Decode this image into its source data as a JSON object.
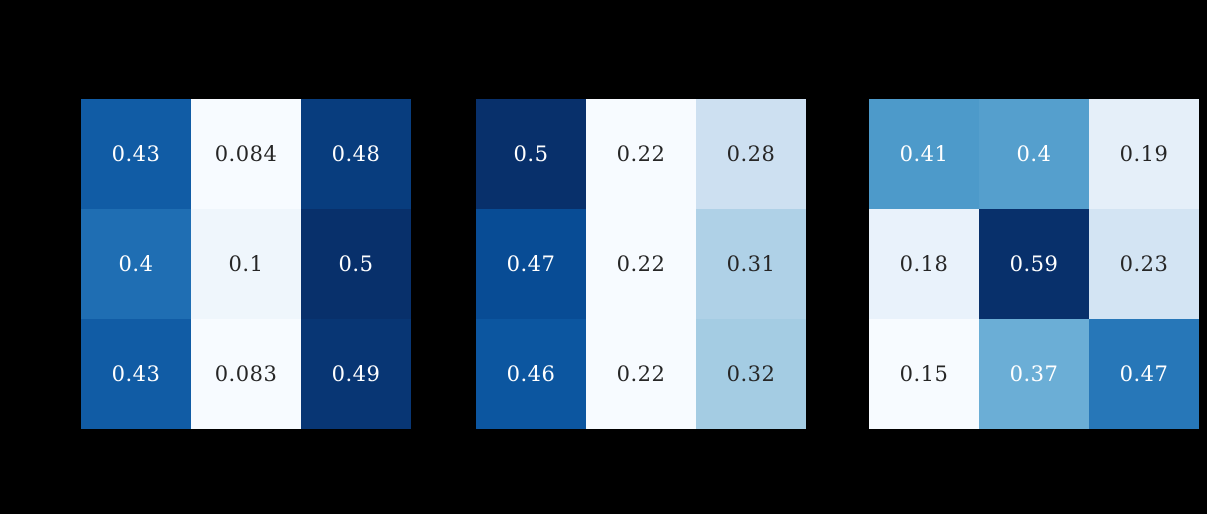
{
  "figure": {
    "background": "#000000",
    "colormap": "Blues",
    "colormap_low": "#f7fbff",
    "colormap_high": "#08306b",
    "annotation_text_dark": "#262626",
    "annotation_text_light": "#ffffff"
  },
  "chart_data": [
    {
      "type": "heatmap",
      "grid": {
        "rows": 3,
        "cols": 3
      },
      "colormap": "Blues",
      "vmin": 0.083,
      "vmax": 0.5,
      "values": [
        [
          0.43,
          0.084,
          0.48
        ],
        [
          0.4,
          0.1,
          0.5
        ],
        [
          0.43,
          0.083,
          0.49
        ]
      ],
      "cells": [
        {
          "label": "0.43",
          "value": 0.43,
          "color": "#115ca5",
          "text_color": "#ffffff"
        },
        {
          "label": "0.084",
          "value": 0.084,
          "color": "#f7fbff",
          "text_color": "#262626"
        },
        {
          "label": "0.48",
          "value": 0.48,
          "color": "#083d7e",
          "text_color": "#ffffff"
        },
        {
          "label": "0.4",
          "value": 0.4,
          "color": "#1f6eb3",
          "text_color": "#ffffff"
        },
        {
          "label": "0.1",
          "value": 0.1,
          "color": "#eff6fc",
          "text_color": "#262626"
        },
        {
          "label": "0.5",
          "value": 0.5,
          "color": "#08306b",
          "text_color": "#ffffff"
        },
        {
          "label": "0.43",
          "value": 0.43,
          "color": "#115ca5",
          "text_color": "#ffffff"
        },
        {
          "label": "0.083",
          "value": 0.083,
          "color": "#f7fbff",
          "text_color": "#262626"
        },
        {
          "label": "0.49",
          "value": 0.49,
          "color": "#083674",
          "text_color": "#ffffff"
        }
      ]
    },
    {
      "type": "heatmap",
      "grid": {
        "rows": 3,
        "cols": 3
      },
      "colormap": "Blues",
      "vmin": 0.22,
      "vmax": 0.5,
      "values": [
        [
          0.5,
          0.22,
          0.28
        ],
        [
          0.47,
          0.22,
          0.31
        ],
        [
          0.46,
          0.22,
          0.32
        ]
      ],
      "cells": [
        {
          "label": "0.5",
          "value": 0.5,
          "color": "#08306b",
          "text_color": "#ffffff"
        },
        {
          "label": "0.22",
          "value": 0.22,
          "color": "#f7fbff",
          "text_color": "#262626"
        },
        {
          "label": "0.28",
          "value": 0.28,
          "color": "#cde0f1",
          "text_color": "#262626"
        },
        {
          "label": "0.47",
          "value": 0.47,
          "color": "#084c95",
          "text_color": "#ffffff"
        },
        {
          "label": "0.22",
          "value": 0.22,
          "color": "#f7fbff",
          "text_color": "#262626"
        },
        {
          "label": "0.31",
          "value": 0.31,
          "color": "#afd1e7",
          "text_color": "#262626"
        },
        {
          "label": "0.46",
          "value": 0.46,
          "color": "#0c56a0",
          "text_color": "#ffffff"
        },
        {
          "label": "0.22",
          "value": 0.22,
          "color": "#f7fbff",
          "text_color": "#262626"
        },
        {
          "label": "0.32",
          "value": 0.32,
          "color": "#a4cce3",
          "text_color": "#262626"
        }
      ]
    },
    {
      "type": "heatmap",
      "grid": {
        "rows": 3,
        "cols": 3
      },
      "colormap": "Blues",
      "vmin": 0.15,
      "vmax": 0.59,
      "values": [
        [
          0.41,
          0.4,
          0.19
        ],
        [
          0.18,
          0.59,
          0.23
        ],
        [
          0.15,
          0.37,
          0.47
        ]
      ],
      "cells": [
        {
          "label": "0.41",
          "value": 0.41,
          "color": "#4d9aca",
          "text_color": "#ffffff"
        },
        {
          "label": "0.4",
          "value": 0.4,
          "color": "#559fcd",
          "text_color": "#ffffff"
        },
        {
          "label": "0.19",
          "value": 0.19,
          "color": "#e5eff9",
          "text_color": "#262626"
        },
        {
          "label": "0.18",
          "value": 0.18,
          "color": "#e9f2fb",
          "text_color": "#262626"
        },
        {
          "label": "0.59",
          "value": 0.59,
          "color": "#08306b",
          "text_color": "#ffffff"
        },
        {
          "label": "0.23",
          "value": 0.23,
          "color": "#d3e4f3",
          "text_color": "#262626"
        },
        {
          "label": "0.15",
          "value": 0.15,
          "color": "#f7fbff",
          "text_color": "#262626"
        },
        {
          "label": "0.37",
          "value": 0.37,
          "color": "#6baed6",
          "text_color": "#ffffff"
        },
        {
          "label": "0.47",
          "value": 0.47,
          "color": "#2777b8",
          "text_color": "#ffffff"
        }
      ]
    }
  ]
}
